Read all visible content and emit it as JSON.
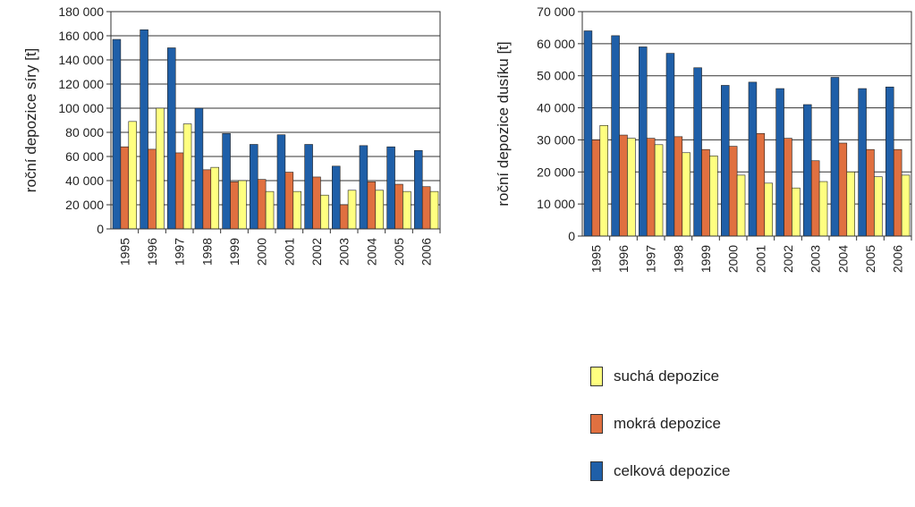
{
  "chart_data": [
    {
      "type": "bar",
      "ylabel": "roční depozice síry [t]",
      "ylim": [
        0,
        180000
      ],
      "yticks": [
        0,
        20000,
        40000,
        60000,
        80000,
        100000,
        120000,
        140000,
        160000,
        180000
      ],
      "ytick_labels": [
        "0",
        "20 000",
        "40 000",
        "60 000",
        "80 000",
        "100 000",
        "120 000",
        "140 000",
        "160 000",
        "180 000"
      ],
      "categories": [
        "1995",
        "1996",
        "1997",
        "1998",
        "1999",
        "2000",
        "2001",
        "2002",
        "2003",
        "2004",
        "2005",
        "2006"
      ],
      "grid": true,
      "series": [
        {
          "name": "celková depozice",
          "color": "#1f5fa8",
          "values": [
            157000,
            165000,
            150000,
            100000,
            79000,
            70000,
            78000,
            70000,
            52000,
            69000,
            68000,
            65000
          ]
        },
        {
          "name": "mokrá depozice",
          "color": "#e07040",
          "values": [
            68000,
            66000,
            63000,
            49000,
            39000,
            41000,
            47000,
            43000,
            20000,
            39000,
            37000,
            35000
          ]
        },
        {
          "name": "suchá depozice",
          "color": "#ffff80",
          "values": [
            89000,
            100000,
            87000,
            51000,
            40000,
            31000,
            31000,
            28000,
            32000,
            32000,
            31000,
            31000
          ]
        }
      ]
    },
    {
      "type": "bar",
      "ylabel": "roční depozice dusíku [t]",
      "ylim": [
        0,
        70000
      ],
      "yticks": [
        0,
        10000,
        20000,
        30000,
        40000,
        50000,
        60000,
        70000
      ],
      "ytick_labels": [
        "0",
        "10 000",
        "20 000",
        "30 000",
        "40 000",
        "50 000",
        "60 000",
        "70 000"
      ],
      "categories": [
        "1995",
        "1996",
        "1997",
        "1998",
        "1999",
        "2000",
        "2001",
        "2002",
        "2003",
        "2004",
        "2005",
        "2006"
      ],
      "grid": true,
      "series": [
        {
          "name": "celková depozice",
          "color": "#1f5fa8",
          "values": [
            64000,
            62500,
            59000,
            57000,
            52500,
            47000,
            48000,
            46000,
            41000,
            49500,
            46000,
            46500
          ]
        },
        {
          "name": "mokrá depozice",
          "color": "#e07040",
          "values": [
            30000,
            31500,
            30500,
            31000,
            27000,
            28000,
            32000,
            30500,
            23500,
            29000,
            27000,
            27000
          ]
        },
        {
          "name": "suchá depozice",
          "color": "#ffff80",
          "values": [
            34500,
            30500,
            28500,
            26000,
            25000,
            19000,
            16500,
            15000,
            17000,
            20000,
            18500,
            19000
          ]
        }
      ]
    }
  ],
  "legend": {
    "placement": "bottom-right",
    "items": [
      {
        "label": "suchá depozice",
        "color": "#ffff80"
      },
      {
        "label": "mokrá depozice",
        "color": "#e07040"
      },
      {
        "label": "celková depozice",
        "color": "#1f5fa8"
      }
    ]
  }
}
